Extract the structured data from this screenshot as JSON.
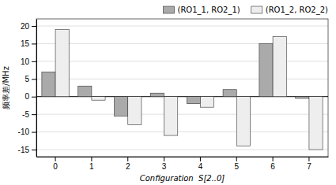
{
  "chart_data": {
    "type": "bar",
    "xlabel": "Configuration  S[2..0]",
    "ylabel": "频率差/MHz",
    "categories": [
      0,
      1,
      2,
      3,
      4,
      5,
      6,
      7
    ],
    "series": [
      {
        "name": "(RO1_1, RO2_1)",
        "color": "#aaaaaa",
        "values": [
          7,
          3,
          -5.5,
          1,
          -2,
          2,
          15,
          -0.5
        ]
      },
      {
        "name": "(RO1_2, RO2_2)",
        "color": "#eeeeee",
        "values": [
          19,
          -1,
          -8,
          -11,
          -3,
          -14,
          17,
          -15
        ]
      }
    ],
    "ylim": [
      -17,
      22
    ],
    "yticks": [
      -15,
      -10,
      -5,
      0,
      5,
      10,
      15,
      20
    ],
    "grid": true,
    "legend": "upper-right"
  }
}
